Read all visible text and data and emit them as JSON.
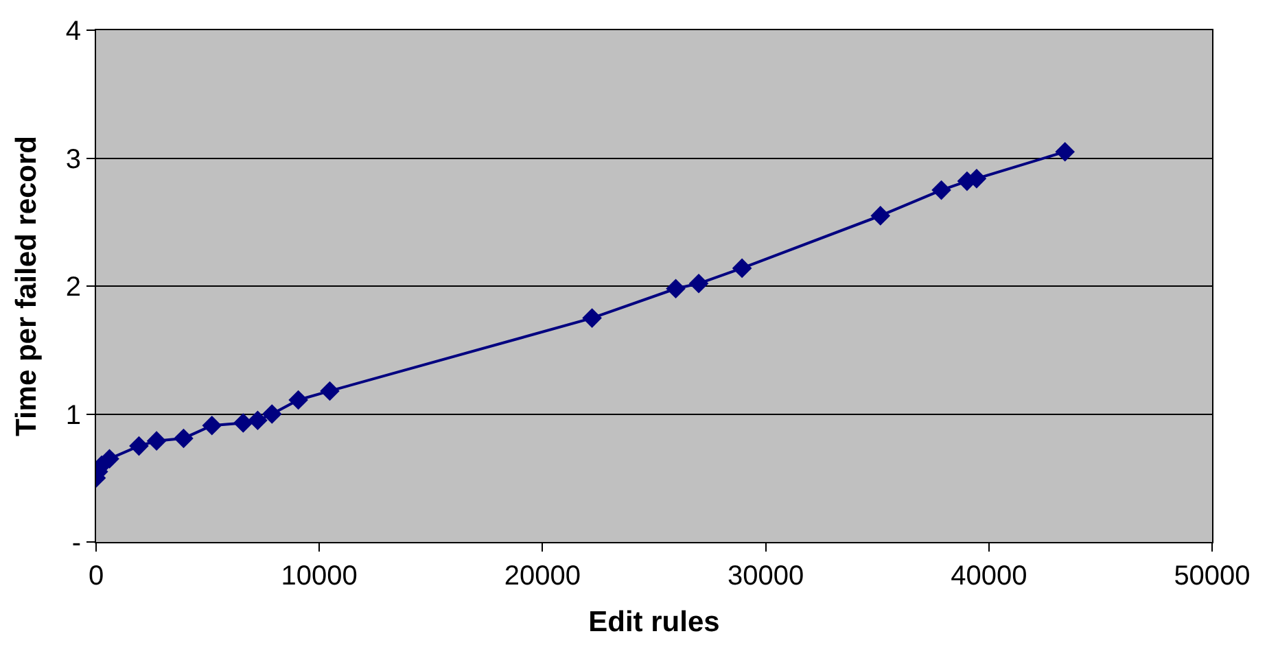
{
  "chart_data": {
    "type": "line",
    "xlabel": "Edit rules",
    "ylabel": "Time per failed record",
    "x": [
      0,
      100,
      250,
      600,
      1920,
      2710,
      3920,
      5190,
      6590,
      7240,
      7880,
      9060,
      10470,
      22220,
      25970,
      27000,
      28940,
      35140,
      37870,
      39020,
      39450,
      43410
    ],
    "series": [
      {
        "color": "#000080",
        "values": [
          0.5,
          0.55,
          0.6,
          0.65,
          0.75,
          0.79,
          0.81,
          0.91,
          0.93,
          0.95,
          1.0,
          1.11,
          1.18,
          1.75,
          1.98,
          2.02,
          2.14,
          2.55,
          2.75,
          2.82,
          2.84,
          3.05
        ]
      }
    ],
    "xlim": [
      0,
      50000
    ],
    "xticks": [
      0,
      10000,
      20000,
      30000,
      40000,
      50000
    ],
    "ylim": [
      0,
      4
    ],
    "yticks": [
      {
        "value": 0,
        "label": "-"
      },
      1,
      2,
      3,
      4
    ],
    "grid": "y",
    "marker": "diamond",
    "line_style": "solid",
    "legend": false
  }
}
